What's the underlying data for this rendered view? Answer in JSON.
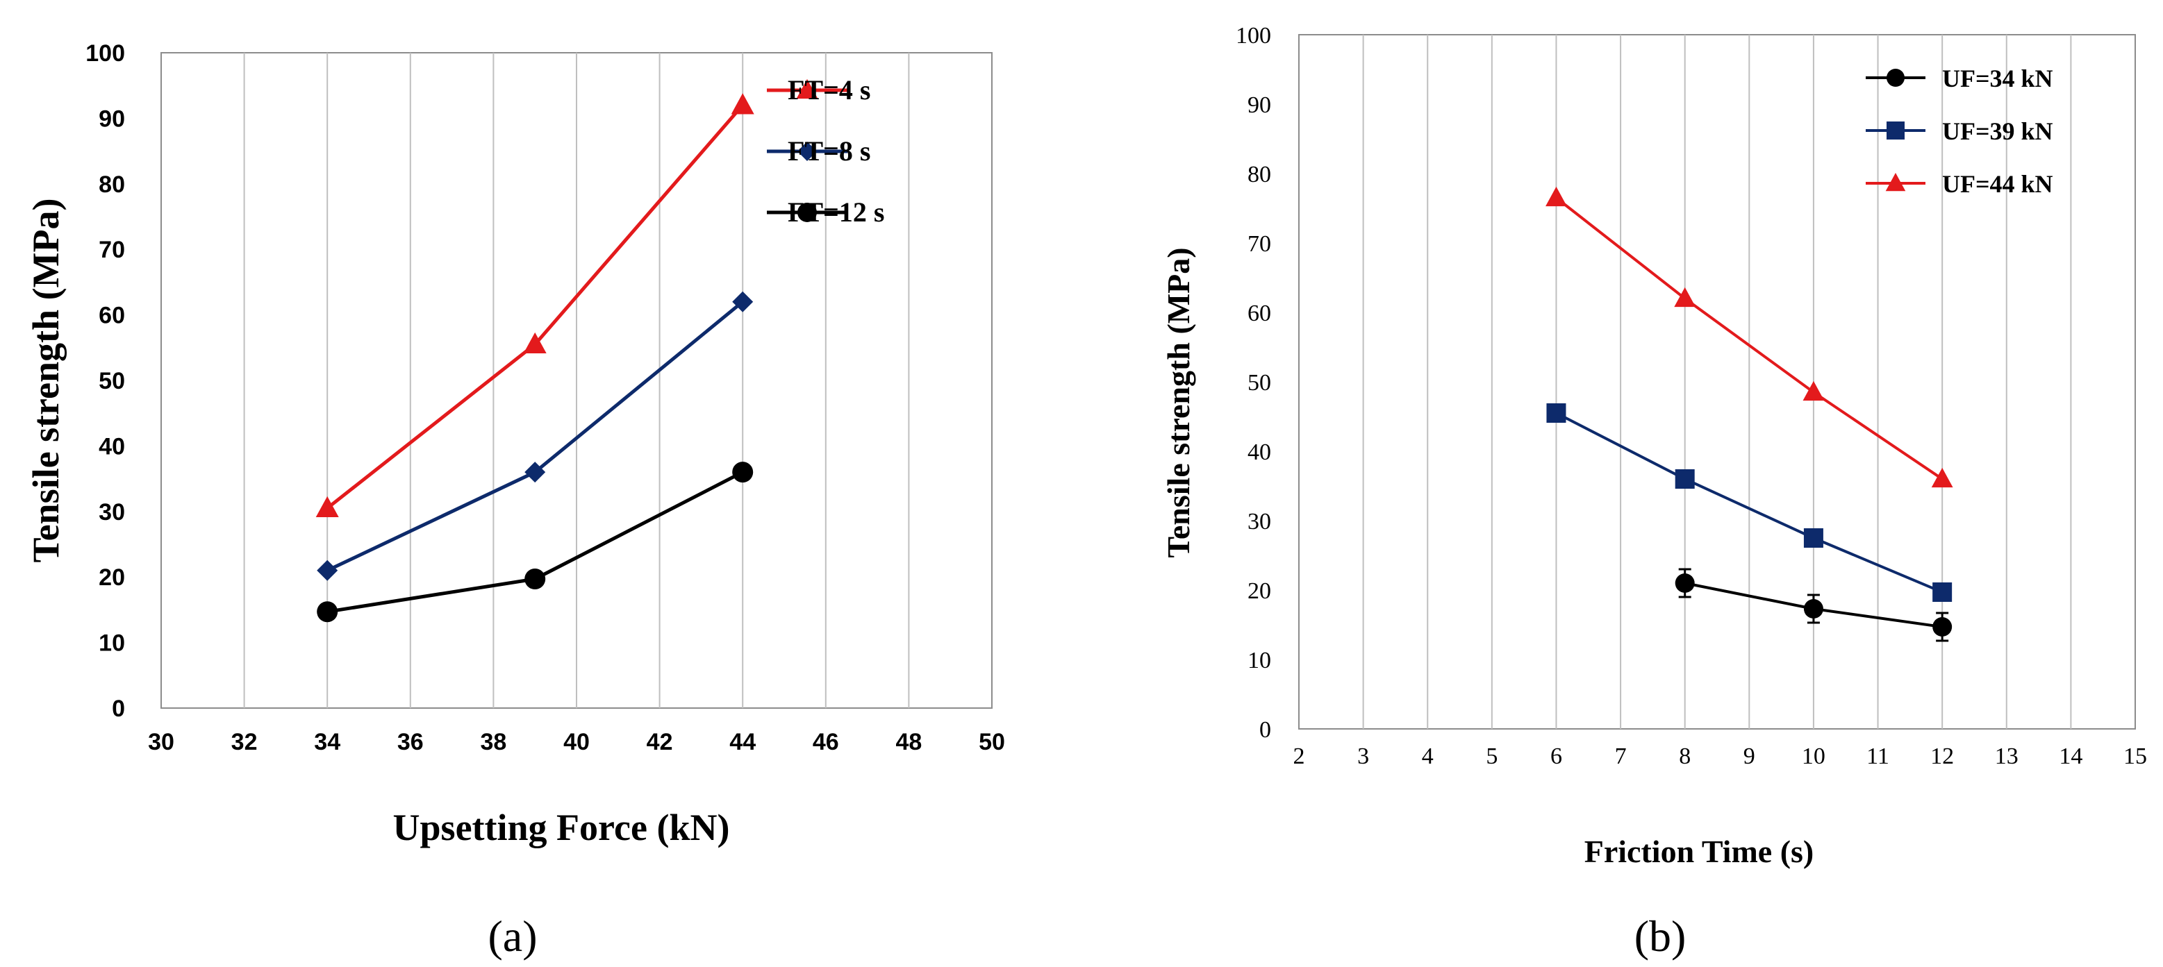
{
  "chart_data": [
    {
      "id": "a",
      "type": "line",
      "panel_label": "(a)",
      "xlabel": "Upsetting Force (kN)",
      "ylabel": "Tensile strength (MPa)",
      "xlim": [
        30,
        50
      ],
      "ylim": [
        0,
        100
      ],
      "xticks": [
        30,
        32,
        34,
        36,
        38,
        40,
        42,
        44,
        46,
        48,
        50
      ],
      "yticks": [
        0,
        10,
        20,
        30,
        40,
        50,
        60,
        70,
        80,
        90,
        100
      ],
      "grid": "vertical",
      "legend": "top-right",
      "series": [
        {
          "name": "FT=4 s",
          "color": "#e31a1c",
          "marker": "triangle",
          "x": [
            34,
            39,
            44
          ],
          "values": [
            30.5,
            55.5,
            92
          ]
        },
        {
          "name": "FT=8 s",
          "color": "#0d2a6b",
          "marker": "diamond",
          "x": [
            34,
            39,
            44
          ],
          "values": [
            21,
            36,
            62
          ]
        },
        {
          "name": "FT=12 s",
          "color": "#000000",
          "marker": "circle",
          "x": [
            34,
            39,
            44
          ],
          "values": [
            14.7,
            19.7,
            36
          ]
        }
      ]
    },
    {
      "id": "b",
      "type": "line",
      "panel_label": "(b)",
      "xlabel": "Friction Time  (s)",
      "ylabel": "Tensile strength (MPa)",
      "xlim": [
        2,
        15
      ],
      "ylim": [
        0,
        100
      ],
      "xticks": [
        2,
        3,
        4,
        5,
        6,
        7,
        8,
        9,
        10,
        11,
        12,
        13,
        14,
        15
      ],
      "yticks": [
        0,
        10,
        20,
        30,
        40,
        50,
        60,
        70,
        80,
        90,
        100
      ],
      "grid": "vertical",
      "legend": "top-right",
      "series": [
        {
          "name": "UF=34 kN",
          "color": "#000000",
          "marker": "circle",
          "x": [
            8,
            10,
            12
          ],
          "values": [
            21,
            17.3,
            14.7
          ],
          "errors": [
            2,
            2,
            2
          ]
        },
        {
          "name": "UF=39 kN",
          "color": "#0d2a6b",
          "marker": "square",
          "x": [
            6,
            8,
            10,
            12
          ],
          "values": [
            45.5,
            36,
            27.5,
            19.7
          ]
        },
        {
          "name": "UF=44 kN",
          "color": "#e31a1c",
          "marker": "triangle",
          "x": [
            6,
            8,
            10,
            12
          ],
          "values": [
            76.5,
            62,
            48.5,
            36
          ]
        }
      ]
    }
  ]
}
